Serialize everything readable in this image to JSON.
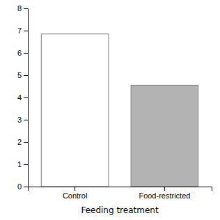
{
  "chart_data": {
    "type": "bar",
    "xlabel": "Feeding treatment",
    "categories": [
      "Control",
      "Food-restricted"
    ],
    "values": [
      6.85,
      4.55
    ],
    "colors": [
      "#ffffff",
      "#b3b3b3"
    ],
    "ylim": [
      0,
      8
    ],
    "yticks": [
      0,
      1,
      2,
      3,
      4,
      5,
      6,
      7,
      8
    ]
  }
}
